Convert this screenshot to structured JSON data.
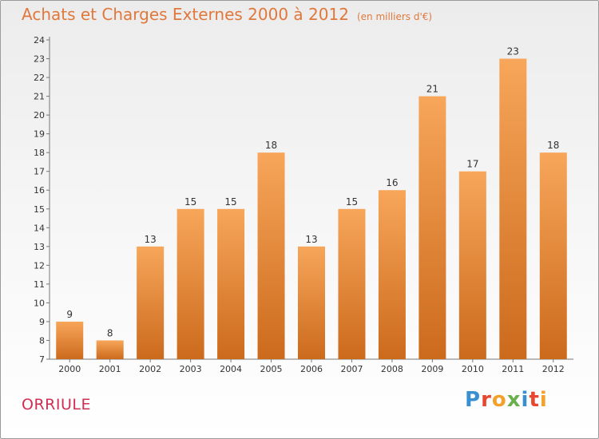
{
  "title": "Achats et Charges Externes 2000 à 2012",
  "unit": "(en milliers d'€)",
  "commune": "ORRIULE",
  "logo": {
    "letters": [
      "P",
      "r",
      "o",
      "x",
      "i",
      "t",
      "i"
    ],
    "colors": [
      "#3a8fd0",
      "#e8462e",
      "#f2a12a",
      "#6ab04c",
      "#3a8fd0",
      "#e8462e",
      "#f2a12a"
    ]
  },
  "colors": {
    "bar_top": "#f7a65a",
    "bar_bottom": "#cc6a1c",
    "title": "#e0783c",
    "commune": "#d02e52"
  },
  "chart_data": {
    "type": "bar",
    "title": "Achats et Charges Externes 2000 à 2012",
    "categories": [
      "2000",
      "2001",
      "2002",
      "2003",
      "2004",
      "2005",
      "2006",
      "2007",
      "2008",
      "2009",
      "2010",
      "2011",
      "2012"
    ],
    "values": [
      9,
      8,
      13,
      15,
      15,
      18,
      13,
      15,
      16,
      21,
      17,
      23,
      18
    ],
    "ylim": [
      7,
      24
    ],
    "yticks": [
      7,
      8,
      9,
      10,
      11,
      12,
      13,
      14,
      15,
      16,
      17,
      18,
      19,
      20,
      21,
      22,
      23,
      24
    ],
    "grid": false,
    "xlabel": "",
    "ylabel": ""
  }
}
